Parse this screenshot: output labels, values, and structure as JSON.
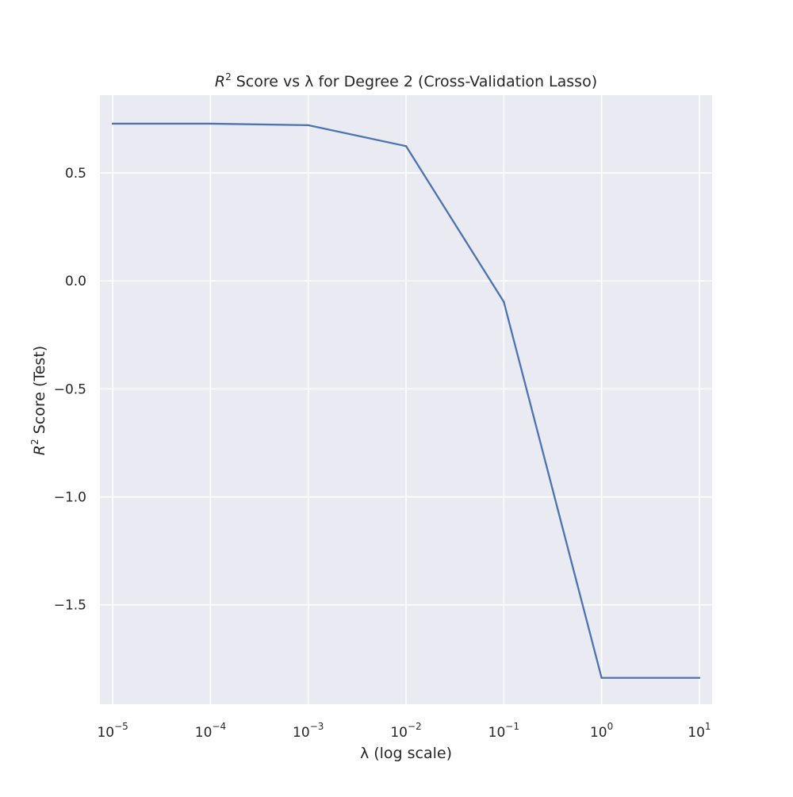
{
  "chart_data": {
    "type": "line",
    "title": {
      "prefix": "R",
      "sup": "2",
      "rest": " Score vs λ for Degree 2 (Cross-Validation Lasso)"
    },
    "xlabel": "λ (log scale)",
    "ylabel": {
      "prefix": "R",
      "sup": "2",
      "rest": " Score (Test)"
    },
    "x_scale": "log",
    "xlim": [
      7.4e-06,
      13.5
    ],
    "ylim": [
      -1.96,
      0.86
    ],
    "x_ticks": [
      {
        "value": 1e-05,
        "base": "10",
        "exp": "−5"
      },
      {
        "value": 0.0001,
        "base": "10",
        "exp": "−4"
      },
      {
        "value": 0.001,
        "base": "10",
        "exp": "−3"
      },
      {
        "value": 0.01,
        "base": "10",
        "exp": "−2"
      },
      {
        "value": 0.1,
        "base": "10",
        "exp": "−1"
      },
      {
        "value": 1,
        "base": "10",
        "exp": "0"
      },
      {
        "value": 10,
        "base": "10",
        "exp": "1"
      }
    ],
    "y_ticks": [
      {
        "value": 0.5,
        "label": "0.5"
      },
      {
        "value": 0.0,
        "label": "0.0"
      },
      {
        "value": -0.5,
        "label": "−0.5"
      },
      {
        "value": -1.0,
        "label": "−1.0"
      },
      {
        "value": -1.5,
        "label": "−1.5"
      }
    ],
    "grid": true,
    "series": [
      {
        "x": [
          1e-05,
          0.0001,
          0.001,
          0.01,
          0.1,
          1,
          10
        ],
        "y": [
          0.728,
          0.728,
          0.721,
          0.624,
          -0.097,
          -1.838,
          -1.838
        ],
        "color": "#4c72b0"
      }
    ],
    "colors": {
      "plot_background": "#eaeaf2",
      "grid": "#ffffff",
      "text": "#262626"
    }
  }
}
